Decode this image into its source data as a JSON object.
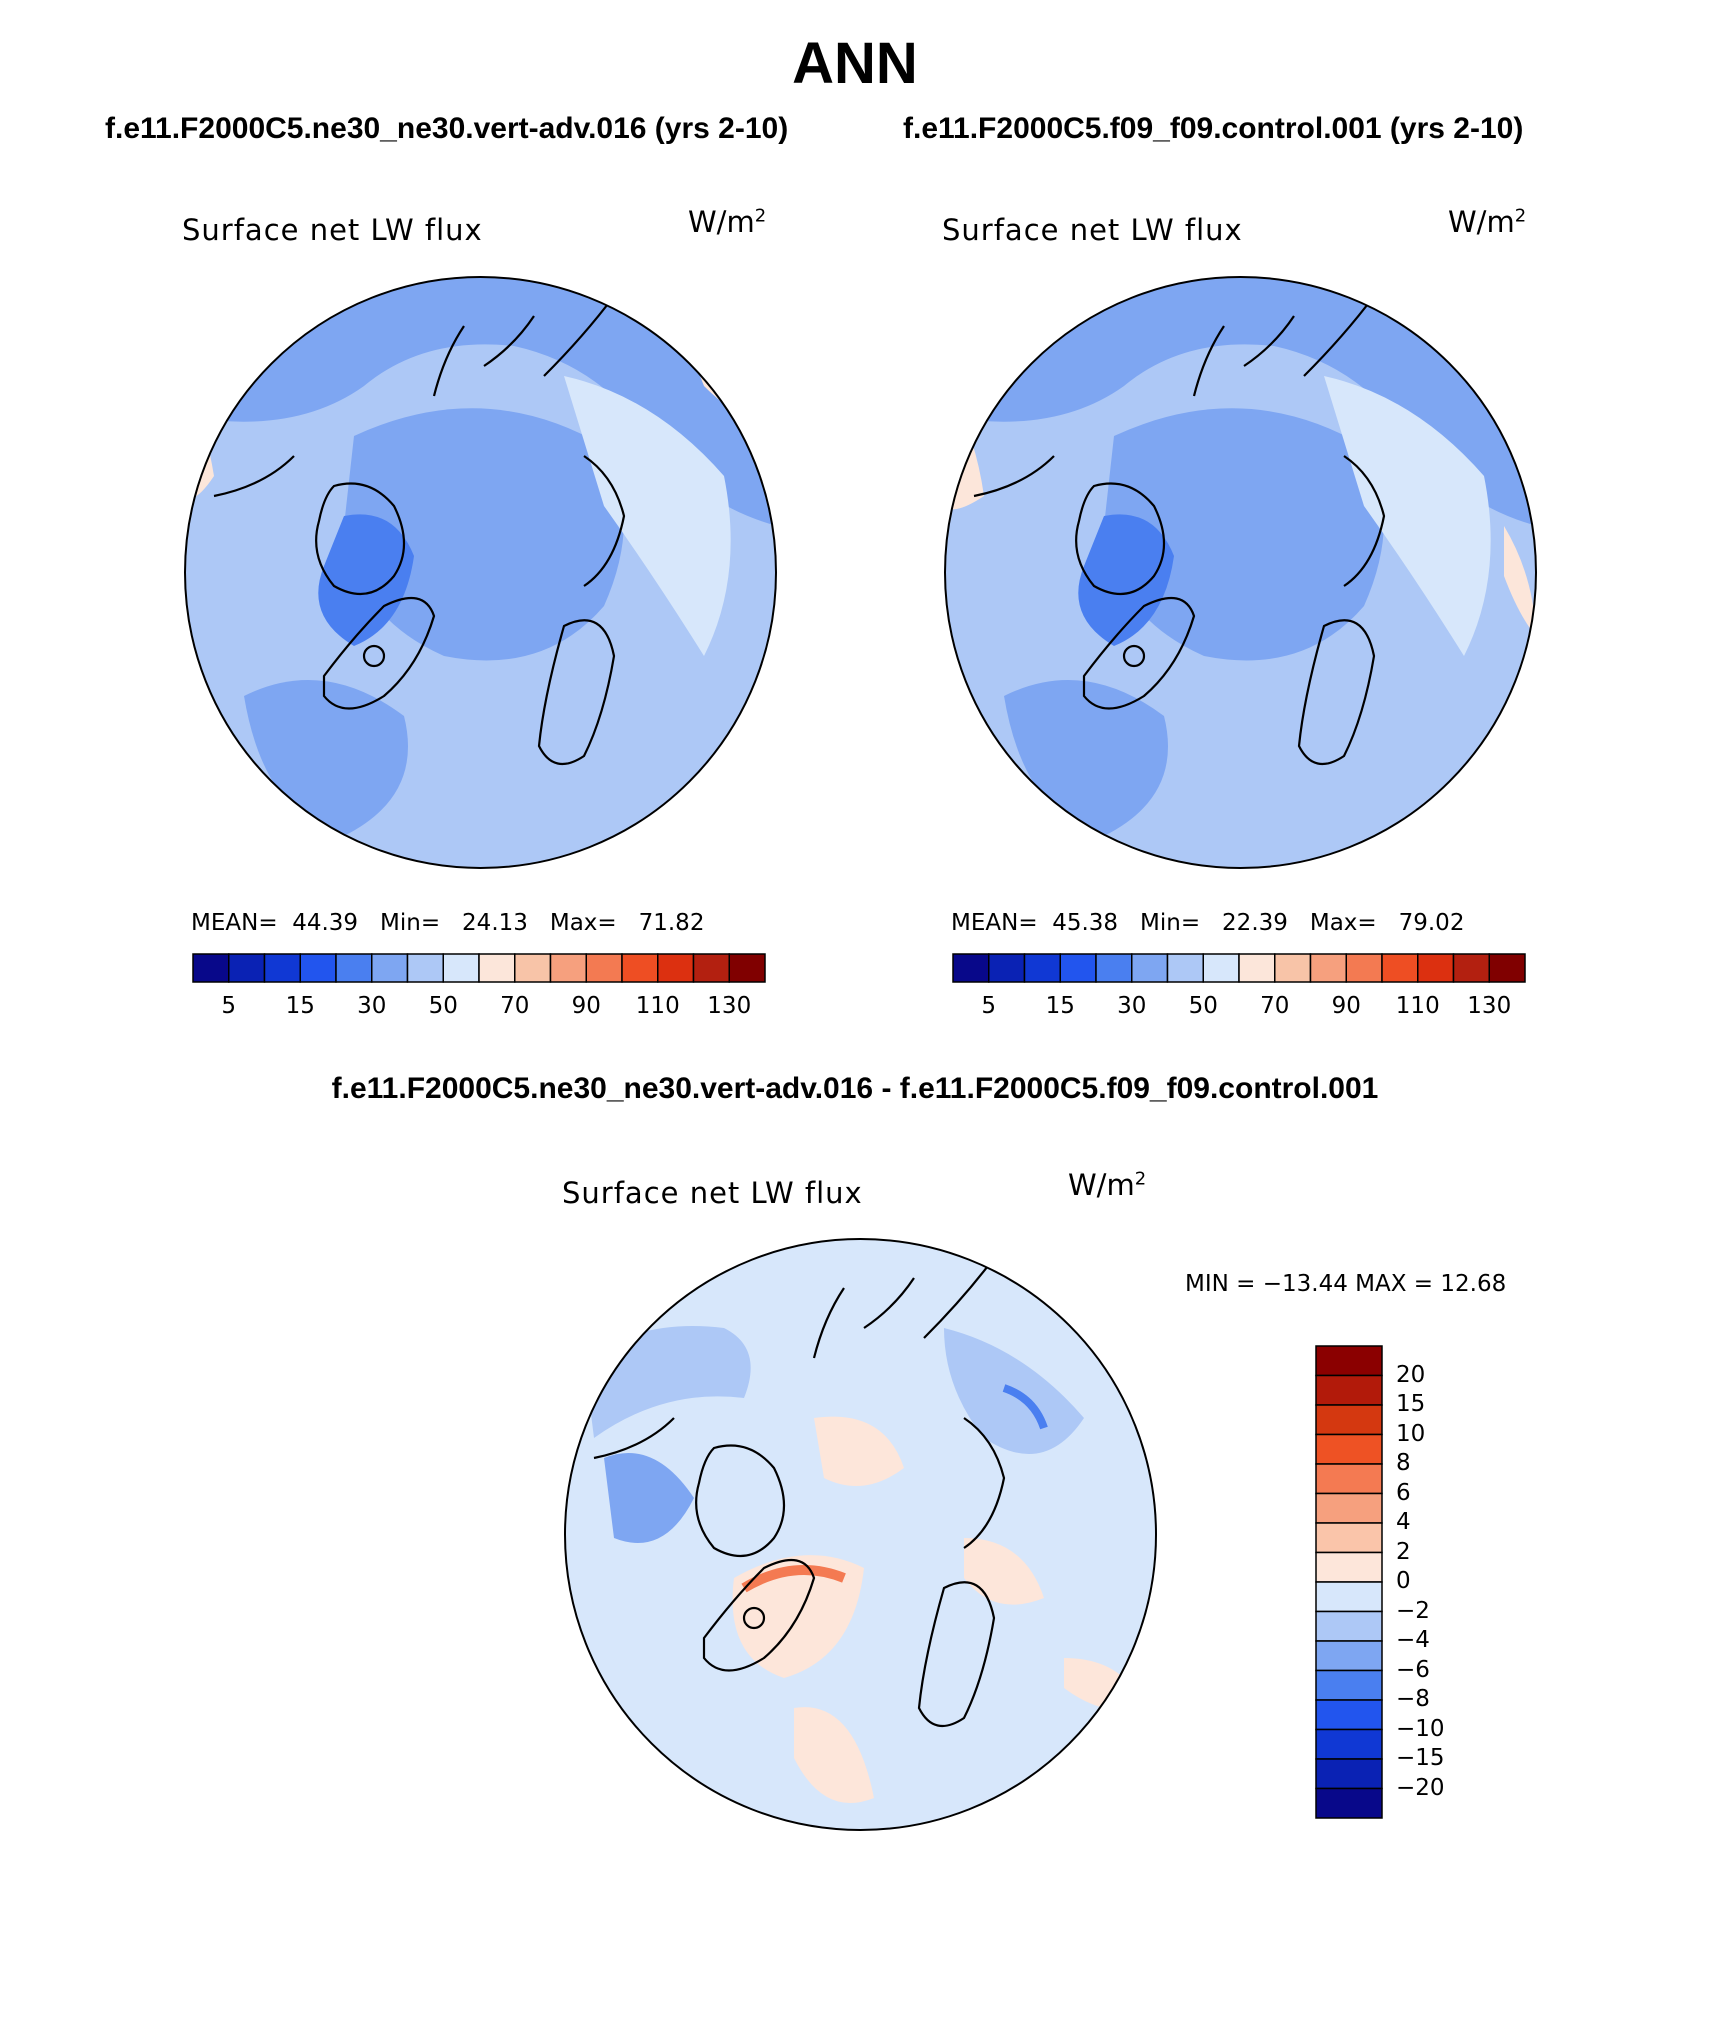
{
  "title": "ANN",
  "panels": [
    {
      "case_title": "f.e11.F2000C5.ne30_ne30.vert-adv.016 (yrs 2-10)",
      "variable": "Surface net LW flux",
      "units": "W/m",
      "units_exp": "2",
      "mean_label": "MEAN=",
      "mean": "44.39",
      "min_label": "Min=",
      "min": "24.13",
      "max_label": "Max=",
      "max": "71.82"
    },
    {
      "case_title": "f.e11.F2000C5.f09_f09.control.001 (yrs 2-10)",
      "variable": "Surface net LW flux",
      "units": "W/m",
      "units_exp": "2",
      "mean_label": "MEAN=",
      "mean": "45.38",
      "min_label": "Min=",
      "min": "22.39",
      "max_label": "Max=",
      "max": "79.02"
    }
  ],
  "abs_colorbar": {
    "colors": [
      "#08088a",
      "#0a22b4",
      "#1038d4",
      "#2255ee",
      "#4a7ff0",
      "#7ea6f2",
      "#adc8f6",
      "#d7e7fb",
      "#fce6da",
      "#f8c4a8",
      "#f6a07e",
      "#f37a52",
      "#ee4e23",
      "#dc3010",
      "#b32010",
      "#800000"
    ],
    "tick_labels": [
      "5",
      "15",
      "30",
      "50",
      "70",
      "90",
      "110",
      "130"
    ]
  },
  "diff_panel": {
    "title": "f.e11.F2000C5.ne30_ne30.vert-adv.016 - f.e11.F2000C5.f09_f09.control.001",
    "variable": "Surface net LW flux",
    "units": "W/m",
    "units_exp": "2",
    "minmax_text": "MIN = −13.44 MAX =  12.68",
    "colors_top_to_bottom": [
      "#8b0000",
      "#b21a0a",
      "#d43810",
      "#ee5224",
      "#f47a52",
      "#f6a07e",
      "#fac5aa",
      "#fde6da",
      "#d7e7fb",
      "#adc8f6",
      "#7ea6f2",
      "#4a7ff0",
      "#2255ee",
      "#1038d4",
      "#0a22b4",
      "#08088a"
    ],
    "tick_labels": [
      "20",
      "15",
      "10",
      "8",
      "6",
      "4",
      "2",
      "0",
      "−2",
      "−4",
      "−6",
      "−8",
      "−10",
      "−15",
      "−20"
    ]
  },
  "chart_data": [
    {
      "type": "heatmap",
      "projection": "north polar stereographic",
      "title": "Surface net LW flux",
      "case": "f.e11.F2000C5.ne30_ne30.vert-adv.016 (yrs 2-10)",
      "units": "W/m2",
      "mean": 44.39,
      "min": 24.13,
      "max": 71.82,
      "contour_levels": [
        5,
        10,
        15,
        20,
        30,
        40,
        50,
        60,
        70,
        80,
        90,
        100,
        110,
        120,
        130
      ]
    },
    {
      "type": "heatmap",
      "projection": "north polar stereographic",
      "title": "Surface net LW flux",
      "case": "f.e11.F2000C5.f09_f09.control.001 (yrs 2-10)",
      "units": "W/m2",
      "mean": 45.38,
      "min": 22.39,
      "max": 79.02,
      "contour_levels": [
        5,
        10,
        15,
        20,
        30,
        40,
        50,
        60,
        70,
        80,
        90,
        100,
        110,
        120,
        130
      ]
    },
    {
      "type": "heatmap",
      "projection": "north polar stereographic",
      "title": "Surface net LW flux",
      "case": "f.e11.F2000C5.ne30_ne30.vert-adv.016 - f.e11.F2000C5.f09_f09.control.001",
      "units": "W/m2",
      "min": -13.44,
      "max": 12.68,
      "contour_levels": [
        -20,
        -15,
        -10,
        -8,
        -6,
        -4,
        -2,
        0,
        2,
        4,
        6,
        8,
        10,
        15,
        20
      ]
    }
  ]
}
